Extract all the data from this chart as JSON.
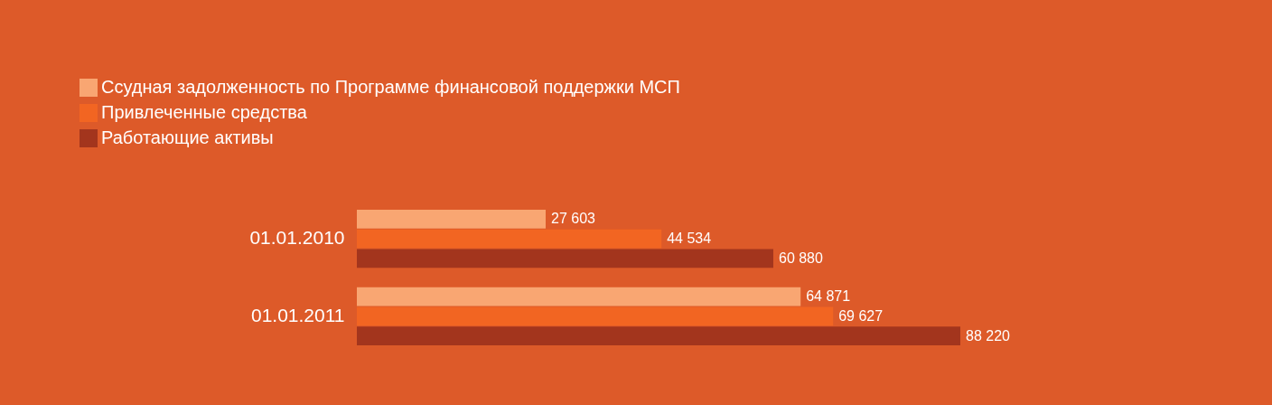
{
  "chart_data": {
    "type": "bar",
    "orientation": "horizontal",
    "legend": "top left",
    "categories": [
      "01.01.2010",
      "01.01.2011"
    ],
    "series": [
      {
        "name": "Ссудная задолженность по Программе финансовой поддержки МСП",
        "color": "#f9a672",
        "values": [
          27603,
          64871
        ],
        "value_labels": [
          "27 603",
          "64 871"
        ]
      },
      {
        "name": "Привлеченные средства",
        "color": "#f26522",
        "values": [
          44534,
          69627
        ],
        "value_labels": [
          "44 534",
          "69 627"
        ]
      },
      {
        "name": "Работающие активы",
        "color": "#a3351d",
        "values": [
          60880,
          88220
        ],
        "value_labels": [
          "60 880",
          "88 220"
        ]
      }
    ]
  }
}
